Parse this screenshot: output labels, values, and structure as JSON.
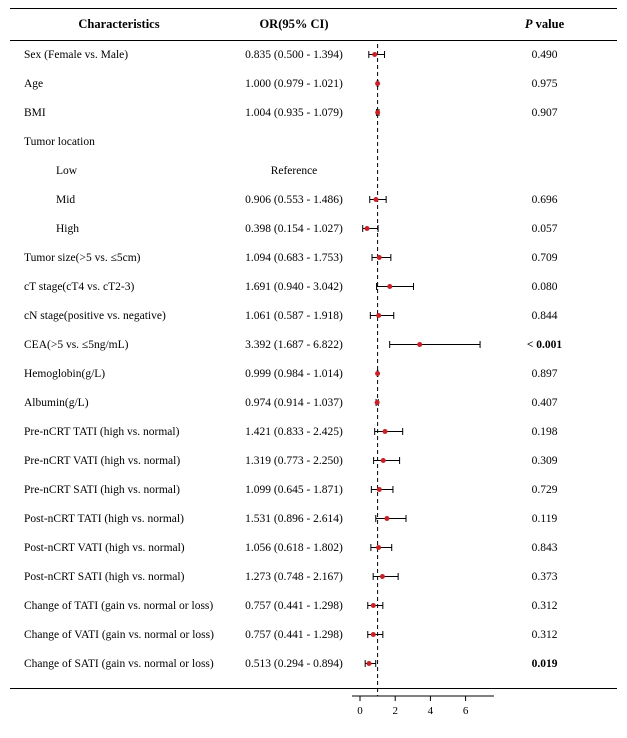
{
  "figure": {
    "header": {
      "characteristics": "Characteristics",
      "or_ci": "OR(95% CI)",
      "p_italic": "P",
      "p_rest": " value"
    },
    "colors": {
      "point": "#cc2027",
      "line": "#000000"
    }
  },
  "chart_data": {
    "type": "forest",
    "title": "",
    "xlabel": "",
    "ylabel": "",
    "x_ticks": [
      0,
      2,
      4,
      6
    ],
    "xlim": [
      0,
      7.6
    ],
    "reference_line": 1,
    "grid": false,
    "rows": [
      {
        "label": "Sex (Female vs. Male)",
        "indent": 0,
        "or_ci": "0.835 (0.500 - 1.394)",
        "est": 0.835,
        "lo": 0.5,
        "hi": 1.394,
        "p": "0.490",
        "p_bold": false
      },
      {
        "label": "Age",
        "indent": 0,
        "or_ci": "1.000 (0.979 - 1.021)",
        "est": 1.0,
        "lo": 0.979,
        "hi": 1.021,
        "p": "0.975",
        "p_bold": false
      },
      {
        "label": "BMI",
        "indent": 0,
        "or_ci": "1.004 (0.935 - 1.079)",
        "est": 1.004,
        "lo": 0.935,
        "hi": 1.079,
        "p": "0.907",
        "p_bold": false
      },
      {
        "label": "Tumor location",
        "indent": 0,
        "or_ci": "",
        "est": null,
        "lo": null,
        "hi": null,
        "p": "",
        "p_bold": false
      },
      {
        "label": "Low",
        "indent": 1,
        "or_ci": "Reference",
        "est": null,
        "lo": null,
        "hi": null,
        "p": "",
        "p_bold": false
      },
      {
        "label": "Mid",
        "indent": 1,
        "or_ci": "0.906 (0.553 - 1.486)",
        "est": 0.906,
        "lo": 0.553,
        "hi": 1.486,
        "p": "0.696",
        "p_bold": false
      },
      {
        "label": "High",
        "indent": 1,
        "or_ci": "0.398 (0.154 - 1.027)",
        "est": 0.398,
        "lo": 0.154,
        "hi": 1.027,
        "p": "0.057",
        "p_bold": false
      },
      {
        "label": "Tumor size(>5 vs. ≤5cm)",
        "indent": 0,
        "or_ci": "1.094 (0.683 - 1.753)",
        "est": 1.094,
        "lo": 0.683,
        "hi": 1.753,
        "p": "0.709",
        "p_bold": false
      },
      {
        "label": "cT stage(cT4 vs. cT2-3)",
        "indent": 0,
        "or_ci": "1.691 (0.940 - 3.042)",
        "est": 1.691,
        "lo": 0.94,
        "hi": 3.042,
        "p": "0.080",
        "p_bold": false
      },
      {
        "label": "cN stage(positive vs. negative)",
        "indent": 0,
        "or_ci": "1.061 (0.587 - 1.918)",
        "est": 1.061,
        "lo": 0.587,
        "hi": 1.918,
        "p": "0.844",
        "p_bold": false
      },
      {
        "label": "CEA(>5 vs. ≤5ng/mL)",
        "indent": 0,
        "or_ci": "3.392 (1.687 - 6.822)",
        "est": 3.392,
        "lo": 1.687,
        "hi": 6.822,
        "p": "< 0.001",
        "p_bold": true
      },
      {
        "label": "Hemoglobin(g/L)",
        "indent": 0,
        "or_ci": "0.999 (0.984 - 1.014)",
        "est": 0.999,
        "lo": 0.984,
        "hi": 1.014,
        "p": "0.897",
        "p_bold": false
      },
      {
        "label": "Albumin(g/L)",
        "indent": 0,
        "or_ci": "0.974 (0.914 - 1.037)",
        "est": 0.974,
        "lo": 0.914,
        "hi": 1.037,
        "p": "0.407",
        "p_bold": false
      },
      {
        "label": "Pre-nCRT TATI (high vs. normal)",
        "indent": 0,
        "or_ci": "1.421 (0.833 - 2.425)",
        "est": 1.421,
        "lo": 0.833,
        "hi": 2.425,
        "p": "0.198",
        "p_bold": false
      },
      {
        "label": "Pre-nCRT VATI (high vs. normal)",
        "indent": 0,
        "or_ci": "1.319 (0.773 - 2.250)",
        "est": 1.319,
        "lo": 0.773,
        "hi": 2.25,
        "p": "0.309",
        "p_bold": false
      },
      {
        "label": "Pre-nCRT SATI (high vs. normal)",
        "indent": 0,
        "or_ci": "1.099 (0.645 - 1.871)",
        "est": 1.099,
        "lo": 0.645,
        "hi": 1.871,
        "p": "0.729",
        "p_bold": false
      },
      {
        "label": "Post-nCRT TATI (high vs. normal)",
        "indent": 0,
        "or_ci": "1.531 (0.896 - 2.614)",
        "est": 1.531,
        "lo": 0.896,
        "hi": 2.614,
        "p": "0.119",
        "p_bold": false
      },
      {
        "label": "Post-nCRT VATI (high vs. normal)",
        "indent": 0,
        "or_ci": "1.056 (0.618 - 1.802)",
        "est": 1.056,
        "lo": 0.618,
        "hi": 1.802,
        "p": "0.843",
        "p_bold": false
      },
      {
        "label": "Post-nCRT SATI (high vs. normal)",
        "indent": 0,
        "or_ci": "1.273 (0.748 - 2.167)",
        "est": 1.273,
        "lo": 0.748,
        "hi": 2.167,
        "p": "0.373",
        "p_bold": false
      },
      {
        "label": "Change of TATI (gain vs. normal or loss)",
        "indent": 0,
        "or_ci": "0.757 (0.441 - 1.298)",
        "est": 0.757,
        "lo": 0.441,
        "hi": 1.298,
        "p": "0.312",
        "p_bold": false
      },
      {
        "label": "Change of VATI (gain vs. normal or loss)",
        "indent": 0,
        "or_ci": "0.757 (0.441 - 1.298)",
        "est": 0.757,
        "lo": 0.441,
        "hi": 1.298,
        "p": "0.312",
        "p_bold": false
      },
      {
        "label": "Change of SATI (gain vs. normal or loss)",
        "indent": 0,
        "or_ci": "0.513 (0.294 - 0.894)",
        "est": 0.513,
        "lo": 0.294,
        "hi": 0.894,
        "p": "0.019",
        "p_bold": true
      }
    ]
  }
}
